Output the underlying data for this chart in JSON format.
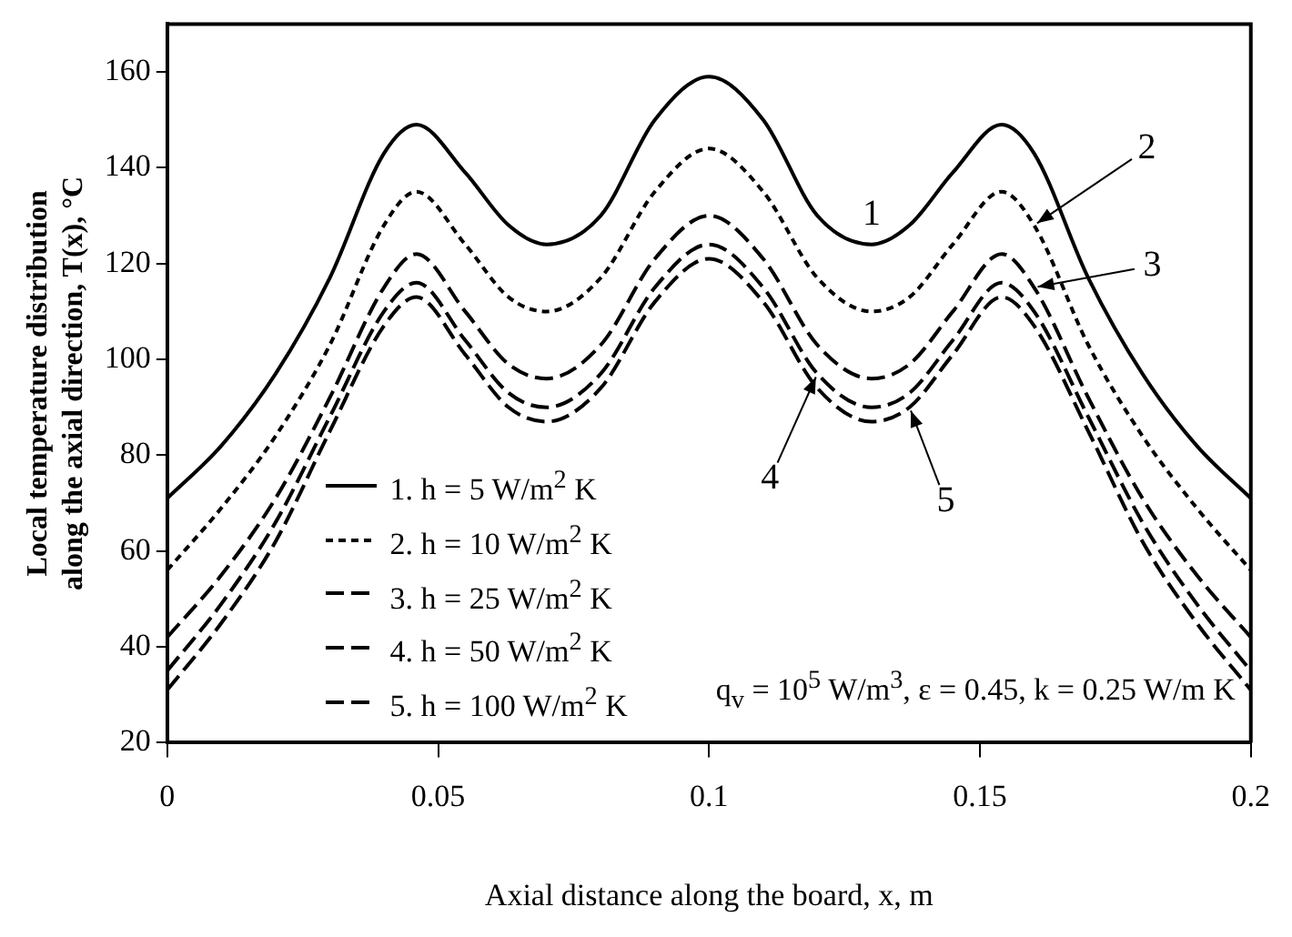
{
  "chart_data": {
    "type": "line",
    "xlabel": "Axial distance along the board, x, m",
    "ylabel": "Local temperature distribution along the axial direction, T(x), °C",
    "x": [
      0,
      0.01,
      0.02,
      0.03,
      0.04,
      0.046,
      0.055,
      0.063,
      0.07,
      0.08,
      0.09,
      0.1,
      0.11,
      0.12,
      0.13,
      0.137,
      0.145,
      0.154,
      0.16,
      0.17,
      0.18,
      0.19,
      0.2
    ],
    "series": [
      {
        "name": "1. h = 5 W/m$^{2}$ K",
        "color": "#000000",
        "line_style": "solid",
        "values": [
          71,
          82,
          97,
          117,
          143,
          149,
          139,
          128,
          124,
          130,
          150,
          159,
          150,
          130,
          124,
          128,
          139,
          149,
          143,
          117,
          97,
          82,
          71
        ]
      },
      {
        "name": "2. h = 10 W/m$^{2}$ K",
        "color": "#000000",
        "line_style": "dotted",
        "values": [
          56,
          69,
          84,
          103,
          128,
          135,
          124,
          113,
          110,
          117,
          135,
          144,
          135,
          117,
          110,
          113,
          124,
          135,
          128,
          103,
          84,
          69,
          56
        ]
      },
      {
        "name": "3. h = 25 W/m$^{2}$ K",
        "color": "#000000",
        "line_style": "dashed",
        "values": [
          42,
          55,
          71,
          92,
          115,
          122,
          110,
          99,
          96,
          103,
          121,
          130,
          121,
          103,
          96,
          99,
          110,
          122,
          115,
          92,
          71,
          55,
          42
        ]
      },
      {
        "name": "4. h = 50 W/m$^{2}$ K",
        "color": "#000000",
        "line_style": "dashed",
        "values": [
          35,
          49,
          66,
          88,
          110,
          116,
          104,
          93,
          90,
          97,
          115,
          124,
          115,
          97,
          90,
          93,
          104,
          116,
          110,
          88,
          66,
          49,
          35
        ]
      },
      {
        "name": "5. h = 100 W/m$^{2}$ K",
        "color": "#000000",
        "line_style": "dashed",
        "values": [
          31,
          45,
          62,
          85,
          107,
          113,
          101,
          90,
          87,
          94,
          112,
          121,
          112,
          94,
          87,
          90,
          101,
          113,
          107,
          85,
          62,
          45,
          31
        ]
      }
    ],
    "xlim": [
      0,
      0.2
    ],
    "xticks": [
      0,
      0.05,
      0.1,
      0.15,
      0.2
    ],
    "ylim": [
      20,
      170
    ],
    "yticks": [
      20,
      40,
      60,
      80,
      100,
      120,
      140,
      160
    ],
    "grid": false,
    "marker": "none",
    "legend": "bottom left",
    "annotations": [
      {
        "text": "1",
        "x": 0.13,
        "y": 124
      },
      {
        "text": "2",
        "x": 0.16,
        "y": 128
      },
      {
        "text": "3",
        "x": 0.16,
        "y": 115
      },
      {
        "text": "4",
        "x": 0.12,
        "y": 97
      },
      {
        "text": "5",
        "x": 0.137,
        "y": 90
      },
      "q$_{v}$ = 10$^{5}$ W/m$^{3}$, ε = 0.45, k = 0.25 W/m K"
    ]
  }
}
